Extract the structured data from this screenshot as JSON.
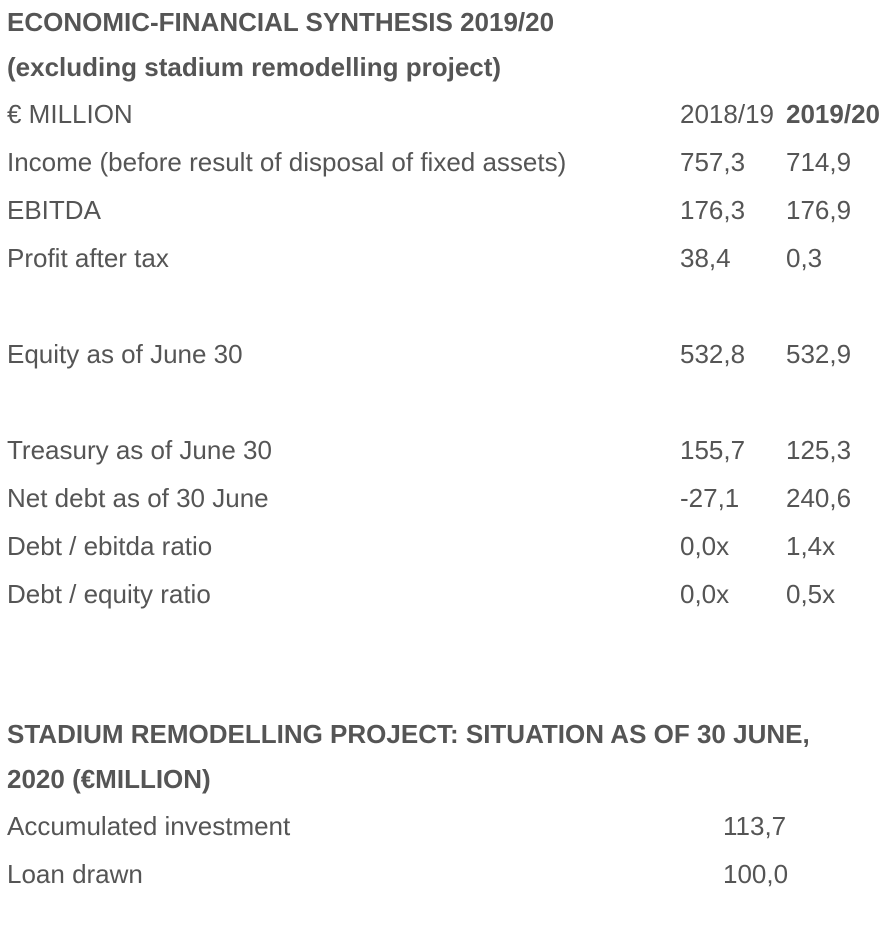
{
  "section1": {
    "title_line1": "ECONOMIC-FINANCIAL SYNTHESIS 2019/20",
    "title_line2": "(excluding stadium remodelling project)",
    "unit_label": "€ MILLION",
    "col_2018": "2018/19",
    "col_2019": "2019/20",
    "rows": [
      {
        "label": "Income (before result of disposal of fixed assets)",
        "v2018": "757,3",
        "v2019": "714,9"
      },
      {
        "label": "EBITDA",
        "v2018": "176,3",
        "v2019": "176,9"
      },
      {
        "label": "Profit after tax",
        "v2018": "38,4",
        "v2019": "0,3"
      },
      {
        "label": "Equity as of June 30",
        "v2018": "532,8",
        "v2019": "532,9"
      },
      {
        "label": "Treasury as of June 30",
        "v2018": "155,7",
        "v2019": "125,3"
      },
      {
        "label": "Net debt as of 30 June",
        "v2018": "-27,1",
        "v2019": "240,6"
      },
      {
        "label": "Debt / ebitda ratio",
        "v2018": "0,0x",
        "v2019": "1,4x"
      },
      {
        "label": "Debt / equity ratio",
        "v2018": "0,0x",
        "v2019": "0,5x"
      }
    ]
  },
  "section2": {
    "title_line1": "STADIUM REMODELLING PROJECT: SITUATION AS OF 30 JUNE,",
    "title_line2": "2020 (€MILLION)",
    "rows": [
      {
        "label": "Accumulated investment",
        "value": "113,7"
      },
      {
        "label": "Loan drawn",
        "value": "100,0"
      }
    ]
  }
}
